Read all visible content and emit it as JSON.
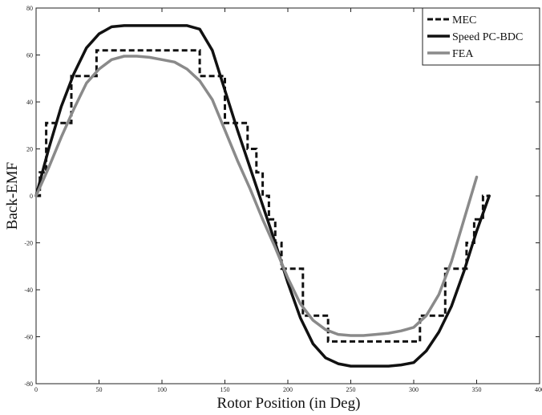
{
  "chart_data": {
    "type": "line",
    "title": "",
    "xlabel": "Rotor Position (in Deg)",
    "ylabel": "Back-EMF",
    "xlim": [
      0,
      400
    ],
    "ylim": [
      -80,
      80
    ],
    "xticks": [
      0,
      50,
      100,
      150,
      200,
      250,
      300,
      350,
      400
    ],
    "yticks": [
      -80,
      -60,
      -40,
      -20,
      0,
      20,
      40,
      60,
      80
    ],
    "grid": false,
    "legend_position": "top-right",
    "series": [
      {
        "name": "MEC",
        "color": "#111111",
        "style": "dashed",
        "step": true,
        "x": [
          0,
          3,
          3,
          8,
          8,
          28,
          28,
          48,
          48,
          130,
          130,
          150,
          150,
          168,
          168,
          175,
          175,
          180,
          180,
          185,
          185,
          190,
          190,
          195,
          195,
          212,
          212,
          232,
          232,
          305,
          305,
          325,
          325,
          342,
          342,
          348,
          348,
          355,
          355,
          360
        ],
        "y": [
          0,
          0,
          10,
          10,
          31,
          31,
          51,
          51,
          62,
          62,
          51,
          51,
          31,
          31,
          20,
          20,
          10,
          10,
          0,
          0,
          -10,
          -10,
          -20,
          -20,
          -31,
          -31,
          -51,
          -51,
          -62,
          -62,
          -51,
          -51,
          -31,
          -31,
          -20,
          -20,
          -10,
          -10,
          0,
          0
        ]
      },
      {
        "name": "Speed PC-BDC",
        "color": "#111111",
        "style": "solid",
        "x": [
          0,
          10,
          20,
          30,
          40,
          50,
          60,
          70,
          80,
          90,
          100,
          110,
          120,
          130,
          140,
          150,
          160,
          170,
          180,
          190,
          200,
          210,
          220,
          230,
          240,
          250,
          260,
          270,
          280,
          290,
          300,
          310,
          320,
          330,
          340,
          350,
          360
        ],
        "y": [
          0,
          20,
          38,
          52,
          63,
          69,
          72,
          72.5,
          72.5,
          72.5,
          72.5,
          72.5,
          72.5,
          71,
          62,
          45,
          28,
          12,
          -4,
          -20,
          -37,
          -52,
          -63,
          -69,
          -71.5,
          -72.5,
          -72.5,
          -72.5,
          -72.5,
          -72,
          -71,
          -66,
          -58,
          -47,
          -32,
          -15,
          0
        ]
      },
      {
        "name": "FEA",
        "color": "#8a8a8a",
        "style": "solid",
        "x": [
          0,
          10,
          20,
          30,
          40,
          50,
          60,
          70,
          80,
          90,
          100,
          110,
          120,
          130,
          140,
          150,
          160,
          170,
          180,
          190,
          200,
          210,
          220,
          230,
          240,
          250,
          260,
          270,
          280,
          290,
          300,
          310,
          320,
          330,
          340,
          350
        ],
        "y": [
          0,
          12,
          25,
          37,
          48,
          54,
          58,
          59.5,
          59.5,
          59,
          58,
          57,
          54,
          49,
          41,
          28,
          15,
          3,
          -10,
          -22,
          -35,
          -46,
          -53,
          -57,
          -59,
          -59.5,
          -59.5,
          -59,
          -58.5,
          -57.5,
          -56,
          -51,
          -42,
          -28,
          -10,
          8
        ]
      }
    ]
  }
}
